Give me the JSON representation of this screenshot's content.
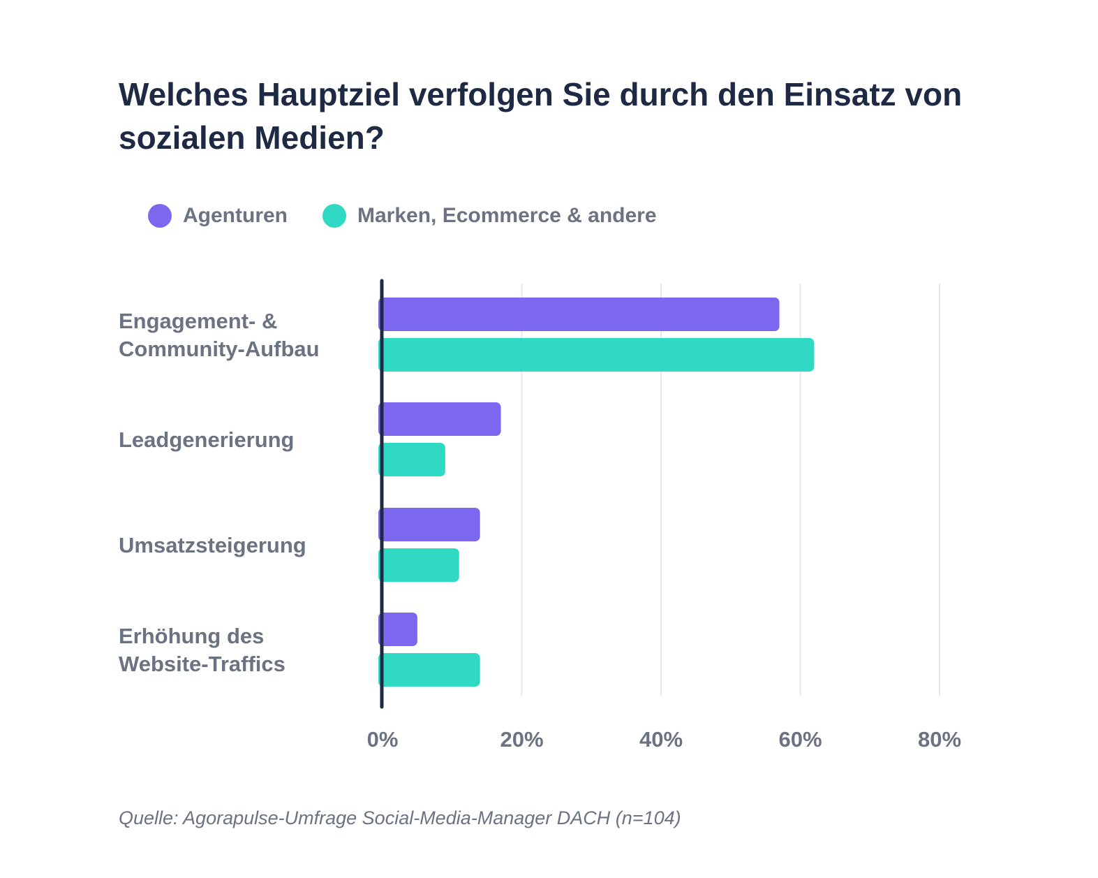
{
  "title": "Welches Hauptziel verfolgen Sie durch den Einsatz von sozialen Medien?",
  "source": "Quelle: Agorapulse-Umfrage Social-Media-Manager DACH (n=104)",
  "colors": {
    "agenturen": "#7b68ee",
    "marken": "#2fd9c4",
    "axis": "#1e2a44",
    "grid": "#e6e7ea",
    "text": "#6b7281"
  },
  "chart_data": {
    "type": "bar",
    "orientation": "horizontal",
    "categories": [
      [
        "Engagement- &",
        "Community-Aufbau"
      ],
      [
        "Leadgenerierung"
      ],
      [
        "Umsatzsteigerung"
      ],
      [
        "Erhöhung des",
        "Website-Traffics"
      ]
    ],
    "series": [
      {
        "name": "Agenturen",
        "color": "#7b68ee",
        "values": [
          57,
          17,
          14,
          5
        ]
      },
      {
        "name": "Marken, Ecommerce & andere",
        "color": "#2fd9c4",
        "values": [
          62,
          9,
          11,
          14
        ]
      }
    ],
    "xlim": [
      0,
      80
    ],
    "xticks": [
      "0%",
      "20%",
      "40%",
      "60%",
      "80%"
    ],
    "xtick_values": [
      0,
      20,
      40,
      60,
      80
    ],
    "grid": true,
    "legend_position": "top-left"
  }
}
